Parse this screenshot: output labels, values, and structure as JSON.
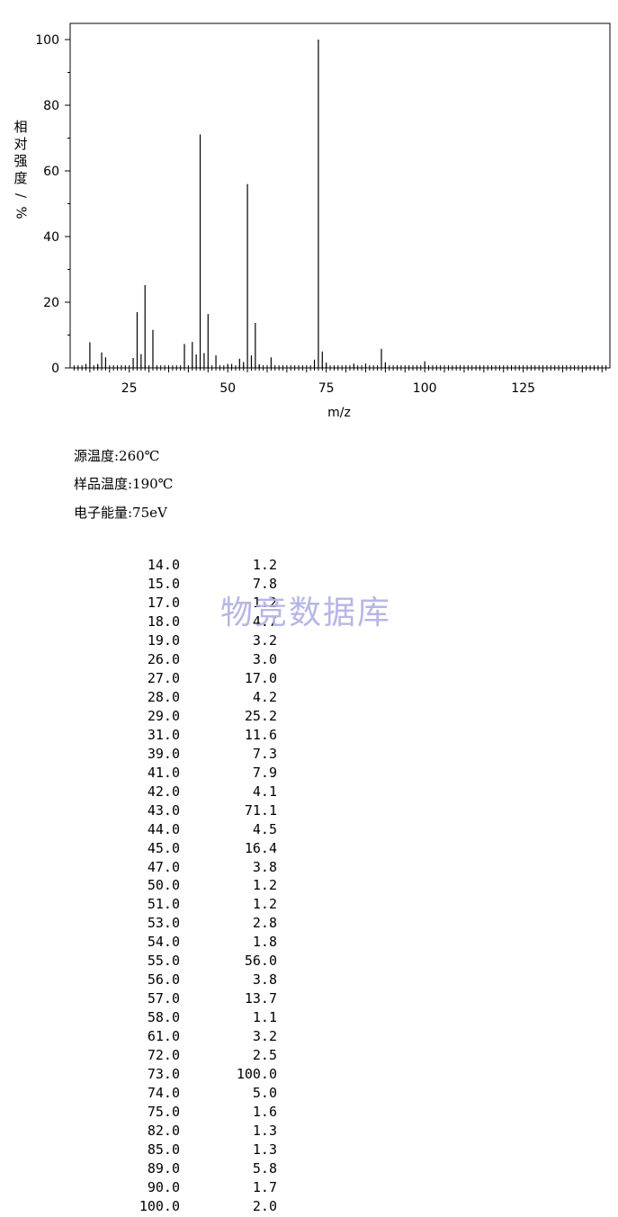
{
  "chart_data": {
    "type": "bar",
    "ylabel": "相对强度/%",
    "xlabel": "m/z",
    "xlim": [
      10,
      147
    ],
    "ylim": [
      0,
      100
    ],
    "x_ticks": [
      25,
      50,
      75,
      100,
      125
    ],
    "y_ticks": [
      0,
      20,
      40,
      60,
      80,
      100
    ],
    "peaks_mz": [
      14,
      15,
      17,
      18,
      19,
      26,
      27,
      28,
      29,
      31,
      39,
      41,
      42,
      43,
      44,
      45,
      47,
      50,
      51,
      53,
      54,
      55,
      56,
      57,
      58,
      61,
      72,
      73,
      74,
      75,
      82,
      85,
      89,
      90,
      100
    ],
    "peaks_intensity": [
      1.2,
      7.8,
      1.2,
      4.7,
      3.2,
      3.0,
      17.0,
      4.2,
      25.2,
      11.6,
      7.3,
      7.9,
      4.1,
      71.1,
      4.5,
      16.4,
      3.8,
      1.2,
      1.2,
      2.8,
      1.8,
      56.0,
      3.8,
      13.7,
      1.1,
      3.2,
      2.5,
      100.0,
      5.0,
      1.6,
      1.3,
      1.3,
      5.8,
      1.7,
      2.0
    ]
  },
  "conditions": {
    "source_temp": "源温度:260℃",
    "sample_temp": "样品温度:190℃",
    "electron_energy": "电子能量:75eV"
  },
  "watermark": "物竞数据库",
  "peak_table": [
    {
      "mz": "14.0",
      "intensity": "1.2"
    },
    {
      "mz": "15.0",
      "intensity": "7.8"
    },
    {
      "mz": "17.0",
      "intensity": "1.2"
    },
    {
      "mz": "18.0",
      "intensity": "4.7"
    },
    {
      "mz": "19.0",
      "intensity": "3.2"
    },
    {
      "mz": "26.0",
      "intensity": "3.0"
    },
    {
      "mz": "27.0",
      "intensity": "17.0"
    },
    {
      "mz": "28.0",
      "intensity": "4.2"
    },
    {
      "mz": "29.0",
      "intensity": "25.2"
    },
    {
      "mz": "31.0",
      "intensity": "11.6"
    },
    {
      "mz": "39.0",
      "intensity": "7.3"
    },
    {
      "mz": "41.0",
      "intensity": "7.9"
    },
    {
      "mz": "42.0",
      "intensity": "4.1"
    },
    {
      "mz": "43.0",
      "intensity": "71.1"
    },
    {
      "mz": "44.0",
      "intensity": "4.5"
    },
    {
      "mz": "45.0",
      "intensity": "16.4"
    },
    {
      "mz": "47.0",
      "intensity": "3.8"
    },
    {
      "mz": "50.0",
      "intensity": "1.2"
    },
    {
      "mz": "51.0",
      "intensity": "1.2"
    },
    {
      "mz": "53.0",
      "intensity": "2.8"
    },
    {
      "mz": "54.0",
      "intensity": "1.8"
    },
    {
      "mz": "55.0",
      "intensity": "56.0"
    },
    {
      "mz": "56.0",
      "intensity": "3.8"
    },
    {
      "mz": "57.0",
      "intensity": "13.7"
    },
    {
      "mz": "58.0",
      "intensity": "1.1"
    },
    {
      "mz": "61.0",
      "intensity": "3.2"
    },
    {
      "mz": "72.0",
      "intensity": "2.5"
    },
    {
      "mz": "73.0",
      "intensity": "100.0"
    },
    {
      "mz": "74.0",
      "intensity": "5.0"
    },
    {
      "mz": "75.0",
      "intensity": "1.6"
    },
    {
      "mz": "82.0",
      "intensity": "1.3"
    },
    {
      "mz": "85.0",
      "intensity": "1.3"
    },
    {
      "mz": "89.0",
      "intensity": "5.8"
    },
    {
      "mz": "90.0",
      "intensity": "1.7"
    },
    {
      "mz": "100.0",
      "intensity": "2.0"
    }
  ]
}
